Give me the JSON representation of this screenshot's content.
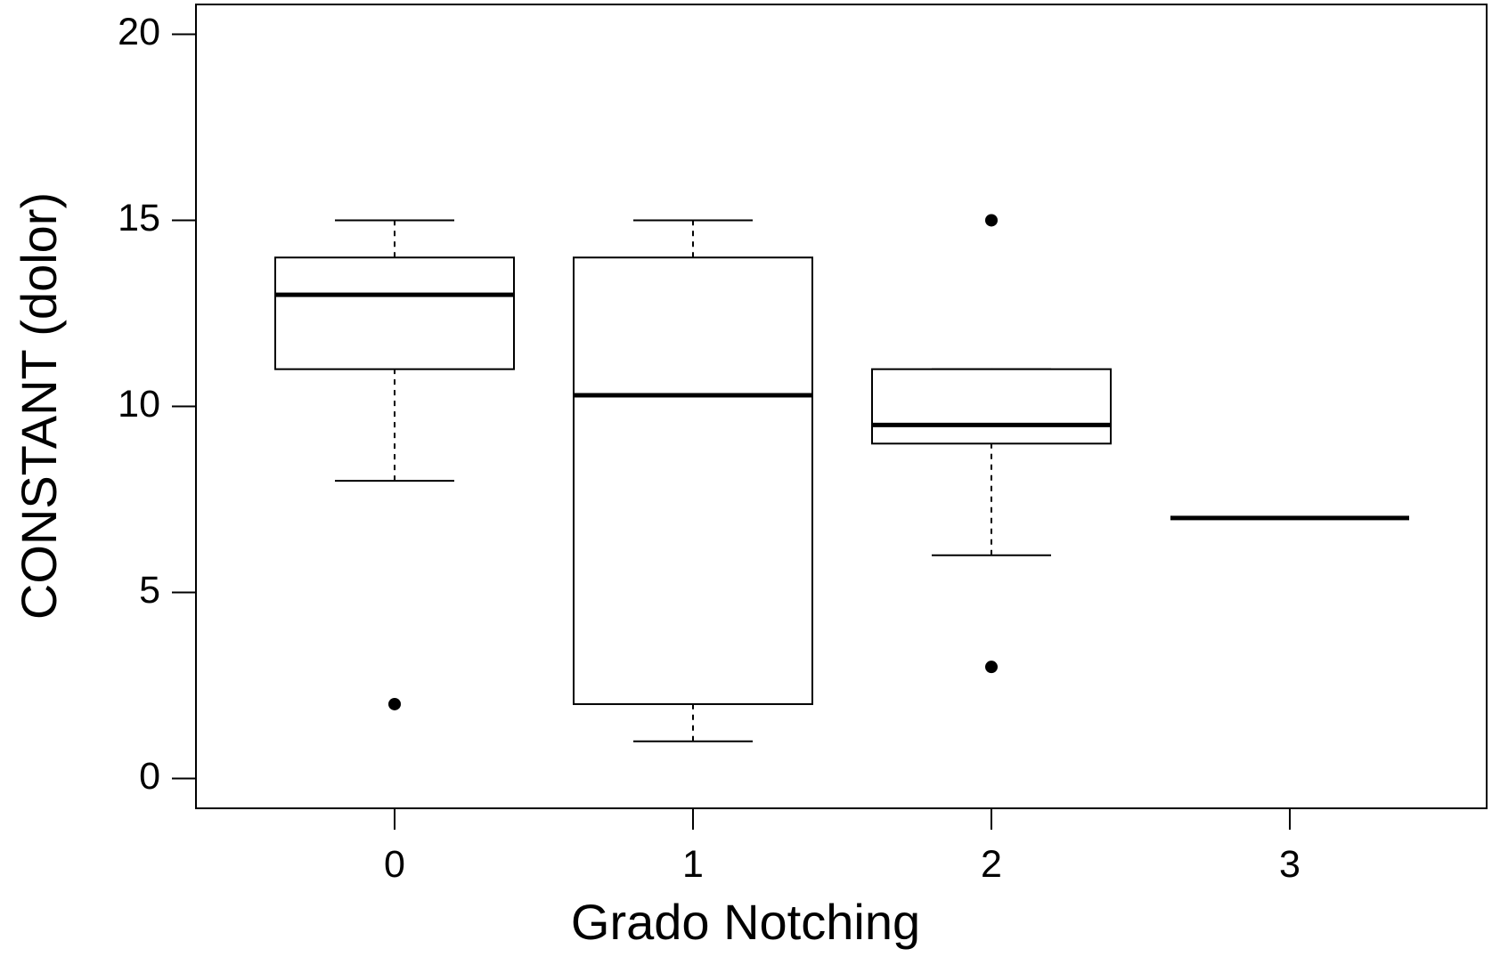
{
  "chart_data": {
    "type": "box",
    "x_label": "Grado Notching",
    "y_label": "CONSTANT (dolor)",
    "categories": [
      "0",
      "1",
      "2",
      "3"
    ],
    "boxes": [
      {
        "whisker_low": 8,
        "q1": 11,
        "median": 13,
        "q3": 14,
        "whisker_high": 15,
        "outliers": [
          2
        ]
      },
      {
        "whisker_low": 1,
        "q1": 2,
        "median": 10.3,
        "q3": 14,
        "whisker_high": 15,
        "outliers": []
      },
      {
        "whisker_low": 6,
        "q1": 9,
        "median": 9.5,
        "q3": 11,
        "whisker_high": 11,
        "outliers": [
          3,
          15
        ]
      },
      {
        "whisker_low": 7,
        "q1": 7,
        "median": 7,
        "q3": 7,
        "whisker_high": 7,
        "outliers": []
      }
    ],
    "color": "#000000",
    "ylim": [
      -0.8,
      20.8
    ],
    "yticks": [
      0,
      5,
      10,
      15,
      20
    ]
  }
}
